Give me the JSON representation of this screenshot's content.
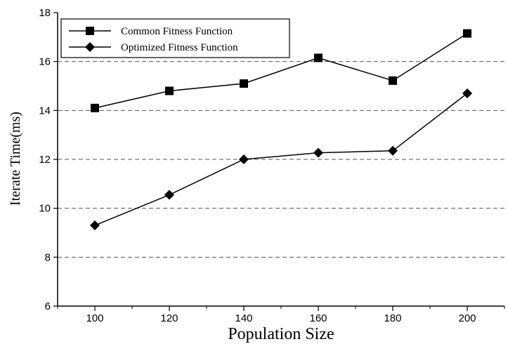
{
  "chart_data": {
    "type": "line",
    "title": "",
    "xlabel": "Population Size",
    "ylabel": "Iterate Time(ms)",
    "x": [
      100,
      120,
      140,
      160,
      180,
      200
    ],
    "xlim": [
      90,
      210
    ],
    "ylim": [
      6,
      18
    ],
    "xticks": [
      100,
      120,
      140,
      160,
      180,
      200
    ],
    "yticks": [
      6,
      8,
      10,
      12,
      14,
      16,
      18
    ],
    "grid": "horizontal-dashed",
    "legend_position": "top-left",
    "series": [
      {
        "name": "Common Fitness Function",
        "marker": "square",
        "values": [
          14.1,
          14.8,
          15.1,
          16.15,
          15.22,
          17.15
        ]
      },
      {
        "name": "Optimized Fitness Function",
        "marker": "diamond",
        "values": [
          9.3,
          10.55,
          12.0,
          12.27,
          12.35,
          14.7
        ]
      }
    ],
    "colors": {
      "line": "#000000",
      "grid": "#555555",
      "background": "#ffffff"
    }
  }
}
